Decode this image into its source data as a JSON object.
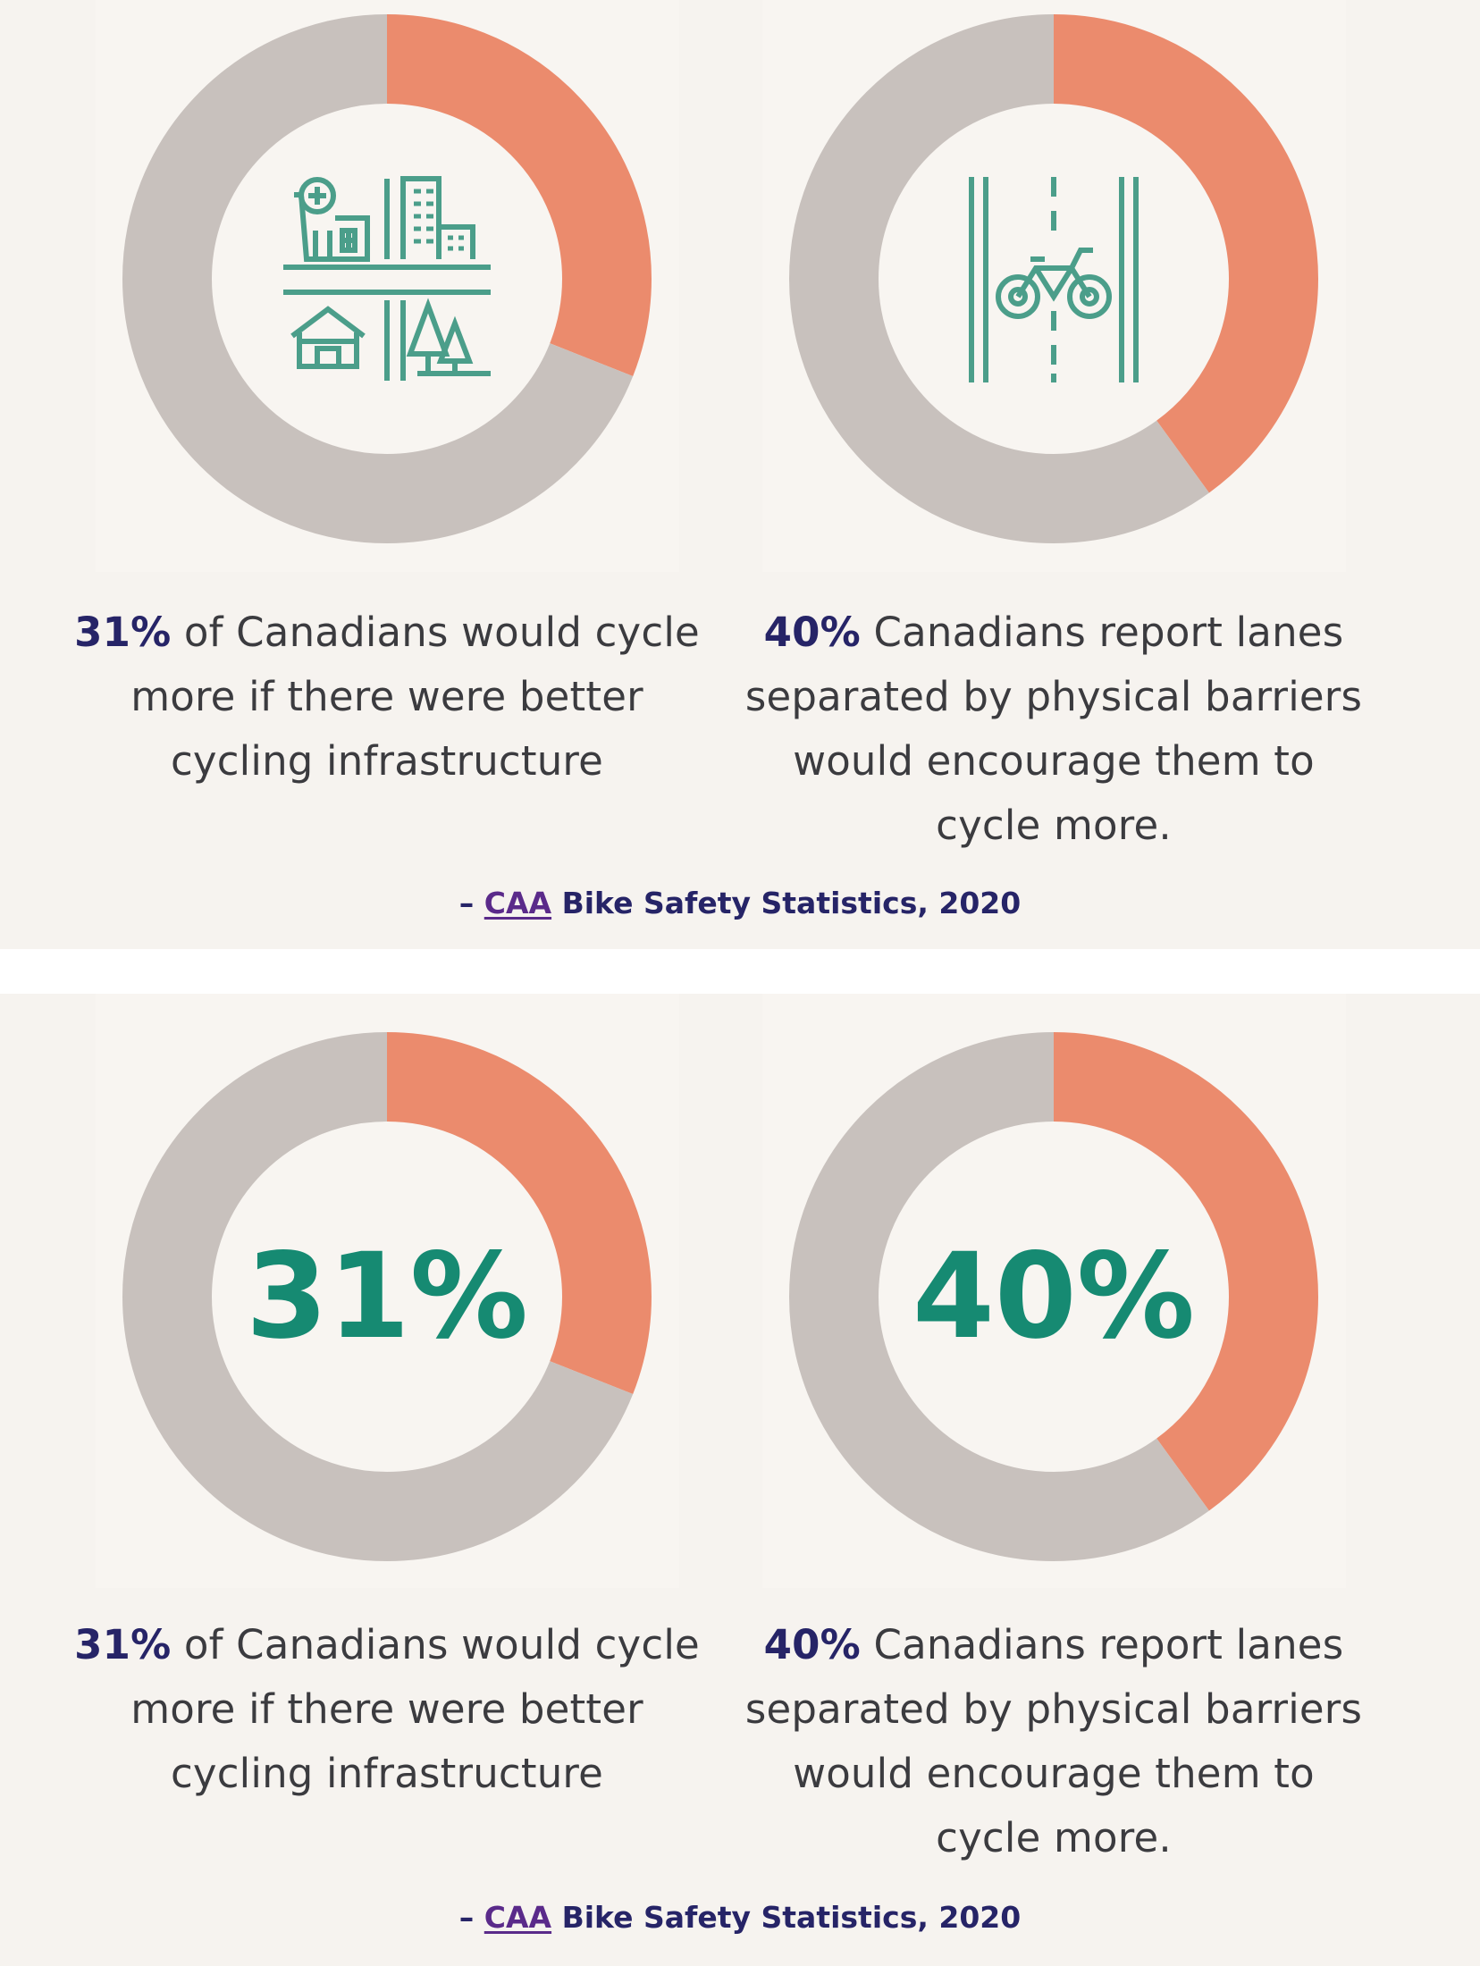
{
  "colors": {
    "accent": "#eb8b6d",
    "remainder": "#c8c1bd",
    "teal": "#4b9e8a",
    "teal_dark": "#168a72",
    "navy": "#262467"
  },
  "panels": [
    {
      "cards": [
        {
          "icon": "city-buildings-icon",
          "pct_label": "31%",
          "text": " of Canadians would cycle more if there were better cycling infrastructure"
        },
        {
          "icon": "bike-lane-icon",
          "pct_label": "40%",
          "text": " Canadians report lanes separated by physical barriers would encourage them to cycle more."
        }
      ],
      "source": {
        "prefix": "– ",
        "link": "CAA",
        "suffix": " Bike Safety Statistics, 2020"
      }
    },
    {
      "cards": [
        {
          "center_label": "31%",
          "pct_label": "31%",
          "text": " of Canadians would cycle more if there were better cycling infrastructure"
        },
        {
          "center_label": "40%",
          "pct_label": "40%",
          "text": " Canadians report lanes separated by physical barriers would encourage them to cycle more."
        }
      ],
      "source": {
        "prefix": "– ",
        "link": "CAA",
        "suffix": " Bike Safety Statistics, 2020"
      }
    }
  ],
  "chart_data": [
    {
      "type": "pie",
      "categories": [
        "",
        ""
      ],
      "values": [
        31,
        69
      ]
    },
    {
      "type": "pie",
      "categories": [
        "",
        ""
      ],
      "values": [
        40,
        60
      ]
    },
    {
      "type": "pie",
      "categories": [
        "",
        ""
      ],
      "values": [
        31,
        69
      ]
    },
    {
      "type": "pie",
      "categories": [
        "",
        ""
      ],
      "values": [
        40,
        60
      ]
    }
  ]
}
